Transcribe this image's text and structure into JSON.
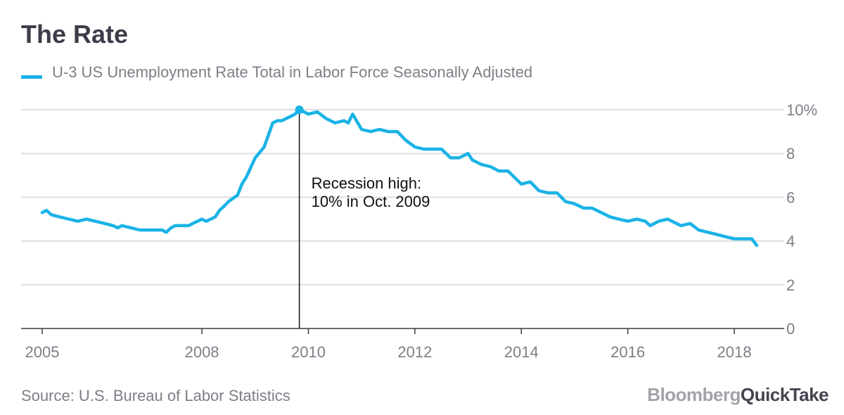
{
  "title": "The Rate",
  "source": "Source: U.S. Bureau of Labor Statistics",
  "brand": {
    "part1": "Bloomberg",
    "part2": "QuickTake"
  },
  "colors": {
    "line": "#1ab3e6",
    "grid": "#dedede",
    "axis": "#3a3a44",
    "tick_text": "#7d7f87",
    "annotation": "#111111"
  },
  "chart_data": {
    "type": "line",
    "series": [
      {
        "name": "U-3 US Unemployment Rate Total in Labor Force Seasonally Adjusted",
        "x": [
          2005.0,
          2005.08,
          2005.17,
          2005.33,
          2005.5,
          2005.67,
          2005.83,
          2006.0,
          2006.17,
          2006.33,
          2006.42,
          2006.5,
          2006.67,
          2006.83,
          2006.92,
          2007.08,
          2007.25,
          2007.33,
          2007.42,
          2007.5,
          2007.67,
          2007.75,
          2007.83,
          2008.0,
          2008.08,
          2008.25,
          2008.33,
          2008.42,
          2008.5,
          2008.67,
          2008.75,
          2008.83,
          2009.0,
          2009.17,
          2009.33,
          2009.42,
          2009.5,
          2009.67,
          2009.75,
          2009.83,
          2010.0,
          2010.17,
          2010.33,
          2010.5,
          2010.67,
          2010.75,
          2010.83,
          2011.0,
          2011.17,
          2011.33,
          2011.5,
          2011.67,
          2011.83,
          2012.0,
          2012.17,
          2012.33,
          2012.5,
          2012.67,
          2012.83,
          2013.0,
          2013.08,
          2013.25,
          2013.42,
          2013.58,
          2013.75,
          2014.0,
          2014.17,
          2014.33,
          2014.5,
          2014.67,
          2014.83,
          2015.0,
          2015.17,
          2015.33,
          2015.5,
          2015.67,
          2015.83,
          2016.0,
          2016.17,
          2016.33,
          2016.42,
          2016.58,
          2016.75,
          2016.83,
          2017.0,
          2017.17,
          2017.33,
          2017.5,
          2017.67,
          2017.83,
          2018.0,
          2018.17,
          2018.25,
          2018.33,
          2018.42
        ],
        "values": [
          5.3,
          5.4,
          5.2,
          5.1,
          5.0,
          4.9,
          5.0,
          4.9,
          4.8,
          4.7,
          4.6,
          4.7,
          4.6,
          4.5,
          4.5,
          4.5,
          4.5,
          4.4,
          4.6,
          4.7,
          4.7,
          4.7,
          4.8,
          5.0,
          4.9,
          5.1,
          5.4,
          5.6,
          5.8,
          6.1,
          6.6,
          6.9,
          7.8,
          8.3,
          9.4,
          9.5,
          9.5,
          9.7,
          9.8,
          10.0,
          9.8,
          9.9,
          9.6,
          9.4,
          9.5,
          9.4,
          9.8,
          9.1,
          9.0,
          9.1,
          9.0,
          9.0,
          8.6,
          8.3,
          8.2,
          8.2,
          8.2,
          7.8,
          7.8,
          8.0,
          7.7,
          7.5,
          7.4,
          7.2,
          7.2,
          6.6,
          6.7,
          6.3,
          6.2,
          6.2,
          5.8,
          5.7,
          5.5,
          5.5,
          5.3,
          5.1,
          5.0,
          4.9,
          5.0,
          4.9,
          4.7,
          4.9,
          5.0,
          4.9,
          4.7,
          4.8,
          4.5,
          4.4,
          4.3,
          4.2,
          4.1,
          4.1,
          4.1,
          4.1,
          3.8
        ]
      }
    ],
    "xticks": [
      2005,
      2008,
      2010,
      2012,
      2014,
      2016,
      2018
    ],
    "xtick_labels": [
      "2005",
      "2008",
      "2010",
      "2012",
      "2014",
      "2016",
      "2018"
    ],
    "yticks": [
      0,
      2,
      4,
      6,
      8,
      10
    ],
    "ytick_labels": [
      "0",
      "2",
      "4",
      "6",
      "8",
      "10%"
    ],
    "xlim": [
      2005.0,
      2018.7
    ],
    "ylim": [
      0,
      10
    ],
    "grid": true,
    "y_axis_side": "right",
    "legend_position": "top-left",
    "annotation": {
      "x": 2009.83,
      "y": 10,
      "line1": "Recession high:",
      "line2": "10% in Oct. 2009"
    }
  }
}
